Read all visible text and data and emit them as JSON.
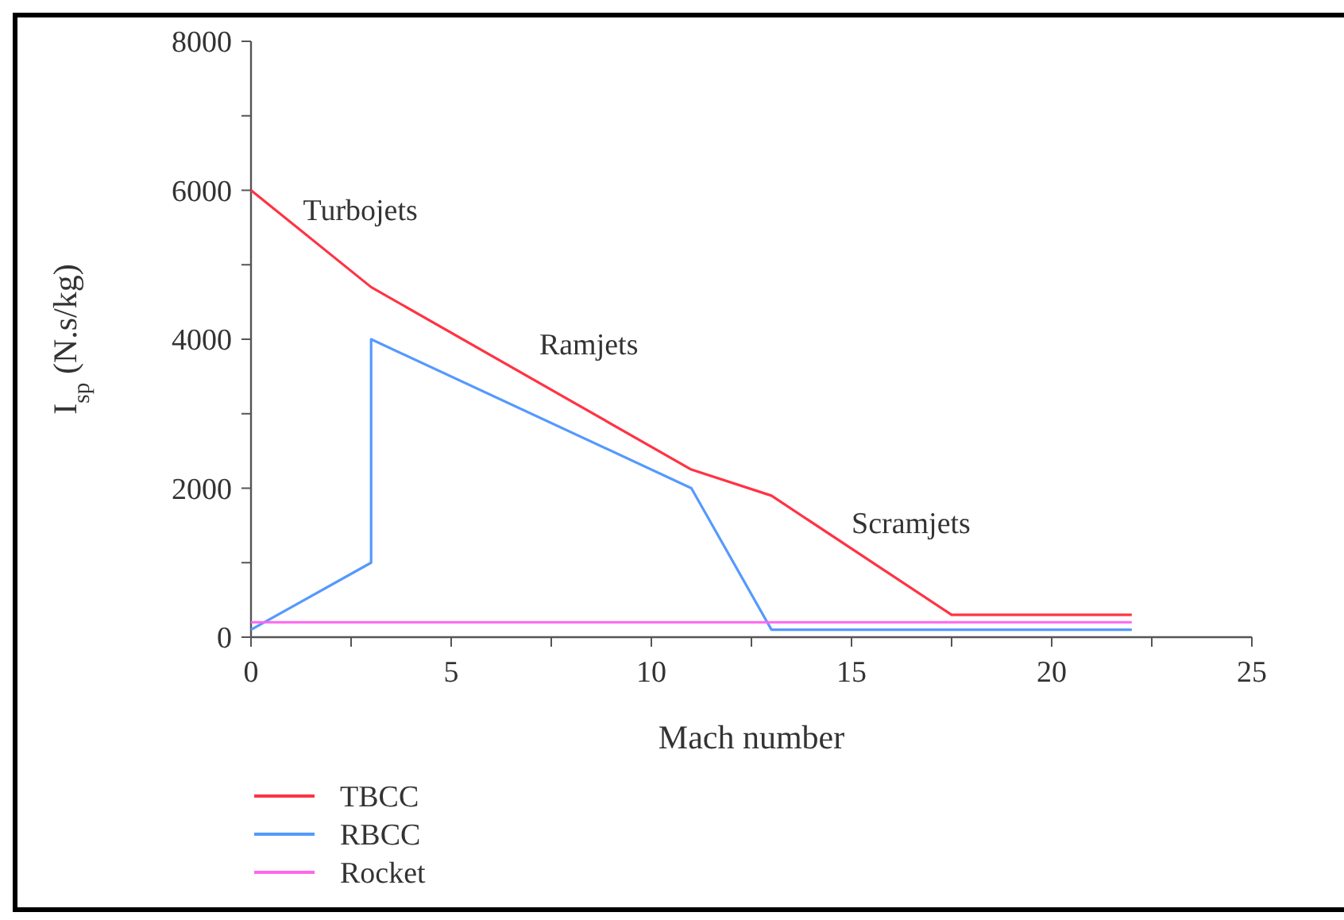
{
  "chart_data": {
    "type": "line",
    "xlabel": "Mach number",
    "ylabel": "I$_{sp}$ (N.s/kg)",
    "xlim": [
      0,
      25
    ],
    "ylim": [
      0,
      8000
    ],
    "xticks": [
      0,
      {
        "value": 2.5,
        "label": null
      },
      5,
      {
        "value": 7.5,
        "label": null
      },
      10,
      {
        "value": 12.5,
        "label": null
      },
      15,
      {
        "value": 17.5,
        "label": null
      },
      20,
      {
        "value": 22.5,
        "label": null
      },
      25
    ],
    "yticks": [
      0,
      {
        "value": 1000,
        "label": null
      },
      2000,
      {
        "value": 3000,
        "label": null
      },
      4000,
      {
        "value": 5000,
        "label": null
      },
      6000,
      {
        "value": 7000,
        "label": null
      },
      8000
    ],
    "series": [
      {
        "name": "TBCC",
        "color": "#ff3344",
        "x": [
          0,
          3,
          11,
          13,
          17.5,
          22
        ],
        "values": [
          6000,
          4700,
          2250,
          1900,
          300,
          300
        ]
      },
      {
        "name": "RBCC",
        "color": "#5599ff",
        "x": [
          0,
          3,
          3,
          11,
          13,
          22
        ],
        "values": [
          100,
          1000,
          4000,
          2000,
          100,
          100
        ]
      },
      {
        "name": "Rocket",
        "color": "#ff66ee",
        "x": [
          0,
          22
        ],
        "values": [
          200,
          200
        ]
      }
    ],
    "annotations": [
      "Turbojets",
      "Ramjets",
      "Scramjets"
    ],
    "legend": "bottom",
    "grid": false,
    "marker": "none",
    "line_style": "solid"
  }
}
